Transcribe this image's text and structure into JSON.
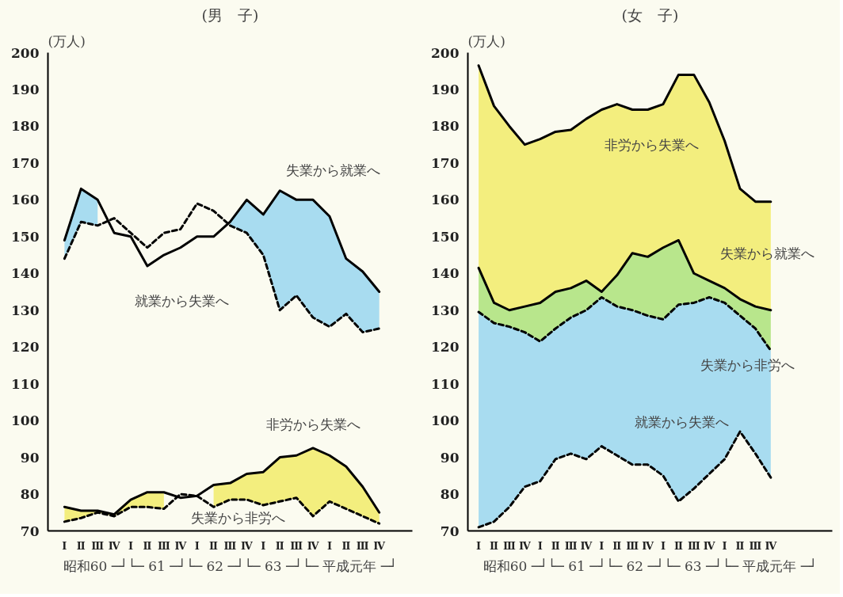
{
  "chart_data": [
    {
      "type": "line",
      "title": "(男　子)",
      "ylabel": "(万人)",
      "xlabel": "昭和60 ─┘└─ 61 ─┘└─ 62 ─┘└─ 63 ─┘└─ 平成元年 ─┘",
      "categories": [
        "Ⅰ",
        "Ⅱ",
        "Ⅲ",
        "Ⅳ",
        "Ⅰ",
        "Ⅱ",
        "Ⅲ",
        "Ⅳ",
        "Ⅰ",
        "Ⅱ",
        "Ⅲ",
        "Ⅳ",
        "Ⅰ",
        "Ⅱ",
        "Ⅲ",
        "Ⅳ",
        "Ⅰ",
        "Ⅱ",
        "Ⅲ",
        "Ⅳ"
      ],
      "ylim": [
        70,
        200
      ],
      "yticks": [
        70,
        80,
        90,
        100,
        110,
        120,
        130,
        140,
        150,
        160,
        170,
        180,
        190,
        200
      ],
      "series": [
        {
          "color": "#000000",
          "line_style": "solid",
          "values": [
            149,
            163,
            160,
            151,
            150,
            142,
            145,
            147,
            150,
            150,
            154,
            160,
            156,
            162.5,
            160,
            160,
            155.5,
            144,
            140.5,
            135
          ],
          "lower": [
            144,
            154,
            153,
            null,
            null,
            null,
            null,
            null,
            null,
            null,
            153,
            151,
            145,
            130,
            134,
            128,
            125.5,
            129,
            124,
            125
          ],
          "upper": [
            149,
            163,
            160,
            null,
            null,
            null,
            null,
            null,
            null,
            null,
            154,
            160,
            156,
            162.5,
            160,
            160,
            155.5,
            144,
            140.5,
            135
          ]
        },
        {
          "color": "#000000",
          "line_style": "dashed",
          "values": [
            144,
            154,
            153,
            155,
            151,
            147,
            151,
            152,
            159,
            157,
            153,
            151,
            145,
            130,
            134,
            128,
            125.5,
            129,
            124,
            125
          ]
        },
        {
          "color": "#000000",
          "line_style": "solid",
          "values": [
            76.5,
            75.5,
            75.5,
            74.5,
            78.5,
            80.5,
            80.5,
            79,
            79.5,
            82.5,
            83,
            85.5,
            86,
            90,
            90.5,
            92.5,
            90.5,
            87.5,
            82,
            75
          ],
          "lower": [
            72.5,
            73.5,
            75,
            74,
            76.5,
            76.5,
            76,
            null,
            null,
            76.5,
            78.5,
            78.5,
            77,
            78,
            79,
            74,
            78,
            76,
            74,
            72
          ],
          "upper": [
            76.5,
            75.5,
            75.5,
            74.5,
            78.5,
            80.5,
            80.5,
            null,
            null,
            82.5,
            83,
            85.5,
            86,
            90,
            90.5,
            92.5,
            90.5,
            87.5,
            82,
            75
          ]
        },
        {
          "color": "#000000",
          "line_style": "dashed",
          "values": [
            72.5,
            73.5,
            75,
            74,
            76.5,
            76.5,
            76,
            80,
            79.5,
            76.5,
            78.5,
            78.5,
            77,
            78,
            79,
            74,
            78,
            76,
            74,
            72
          ]
        }
      ],
      "annotations": [
        "失業から就業へ",
        "就業から失業へ",
        "非労から失業へ",
        "失業から非労へ"
      ]
    },
    {
      "type": "line",
      "title": "(女　子)",
      "ylabel": "(万人)",
      "xlabel": "昭和60 ─┘└─ 61 ─┘└─ 62 ─┘└─ 63 ─┘└─ 平成元年 ─┘",
      "categories": [
        "Ⅰ",
        "Ⅱ",
        "Ⅲ",
        "Ⅳ",
        "Ⅰ",
        "Ⅱ",
        "Ⅲ",
        "Ⅳ",
        "Ⅰ",
        "Ⅱ",
        "Ⅲ",
        "Ⅳ",
        "Ⅰ",
        "Ⅱ",
        "Ⅲ",
        "Ⅳ",
        "Ⅰ",
        "Ⅱ",
        "Ⅲ",
        "Ⅳ"
      ],
      "ylim": [
        70,
        200
      ],
      "yticks": [
        70,
        80,
        90,
        100,
        110,
        120,
        130,
        140,
        150,
        160,
        170,
        180,
        190,
        200
      ],
      "series": [
        {
          "color": "#000000",
          "line_style": "solid",
          "values": [
            196.5,
            185.5,
            180,
            175,
            176.5,
            178.5,
            179,
            182,
            184.5,
            186,
            184.5,
            184.5,
            186,
            194,
            194,
            186.5,
            176,
            163,
            159.5,
            159.5
          ],
          "lower": [
            141.5,
            132,
            130,
            131,
            132,
            135,
            136,
            138,
            135,
            139.5,
            145.5,
            144.5,
            147,
            149,
            140,
            138,
            136,
            133,
            131,
            130
          ],
          "upper": [
            196.5,
            185.5,
            180,
            175,
            176.5,
            178.5,
            179,
            182,
            184.5,
            186,
            184.5,
            184.5,
            186,
            194,
            194,
            186.5,
            176,
            163,
            159.5,
            159.5
          ]
        },
        {
          "color": "#000000",
          "line_style": "solid",
          "values": [
            141.5,
            132,
            130,
            131,
            132,
            135,
            136,
            138,
            135,
            139.5,
            145.5,
            144.5,
            147,
            149,
            140,
            138,
            136,
            133,
            131,
            130
          ],
          "lower": [
            129.5,
            126.5,
            125.5,
            124,
            121.5,
            125,
            128,
            130,
            133.5,
            131,
            130,
            128.5,
            127.5,
            131.5,
            132,
            133.5,
            132,
            128.5,
            125,
            119
          ],
          "upper": [
            141.5,
            132,
            130,
            131,
            132,
            135,
            136,
            138,
            135,
            139.5,
            145.5,
            144.5,
            147,
            149,
            140,
            138,
            136,
            133,
            131,
            130
          ]
        },
        {
          "color": "#000000",
          "line_style": "dashed",
          "values": [
            129.5,
            126.5,
            125.5,
            124,
            121.5,
            125,
            128,
            130,
            133.5,
            131,
            130,
            128.5,
            127.5,
            131.5,
            132,
            133.5,
            132,
            128.5,
            125,
            119
          ],
          "lower": [
            71,
            72.5,
            76.5,
            82,
            83.5,
            89.5,
            91,
            89.5,
            93,
            90.5,
            88,
            88,
            85,
            78,
            81.5,
            85.5,
            89.5,
            97,
            91,
            84.5
          ],
          "upper": [
            129.5,
            126.5,
            125.5,
            124,
            121.5,
            125,
            128,
            130,
            133.5,
            131,
            130,
            128.5,
            127.5,
            131.5,
            132,
            133.5,
            132,
            128.5,
            125,
            119
          ]
        },
        {
          "color": "#000000",
          "line_style": "dashed",
          "values": [
            71,
            72.5,
            76.5,
            82,
            83.5,
            89.5,
            91,
            89.5,
            93,
            90.5,
            88,
            88,
            85,
            78,
            81.5,
            85.5,
            89.5,
            97,
            91,
            84.5
          ]
        }
      ],
      "annotations": [
        "非労から失業へ",
        "失業から就業へ",
        "失業から非労へ",
        "就業から失業へ"
      ]
    }
  ]
}
